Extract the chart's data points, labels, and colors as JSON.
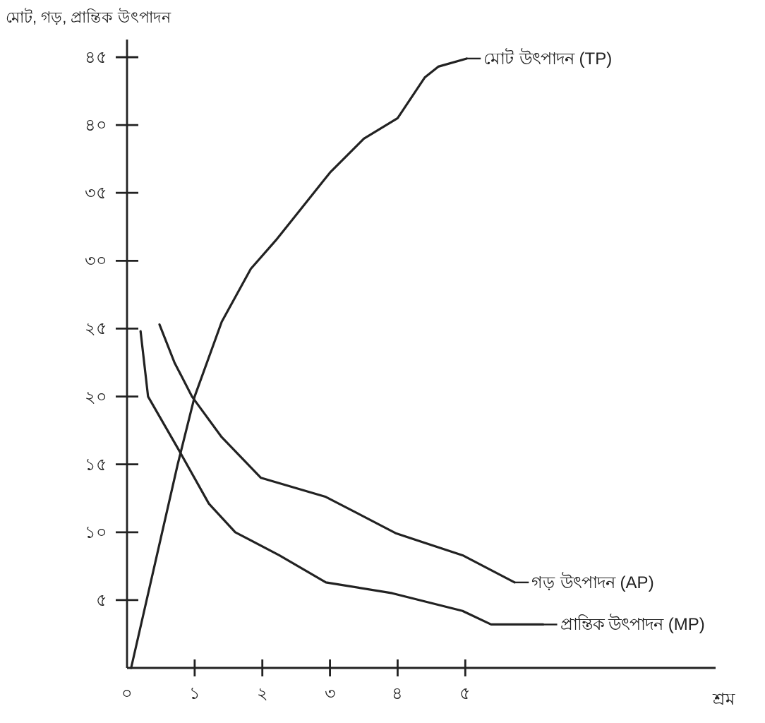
{
  "chart_data": {
    "type": "line",
    "xlabel": "শ্রম",
    "ylabel": "মোট, গড়, প্রান্তিক উৎপাদন",
    "xlim": [
      0,
      8.7
    ],
    "ylim": [
      0,
      46.3
    ],
    "xticks": [
      {
        "value": 0,
        "label": "০"
      },
      {
        "value": 1,
        "label": "১"
      },
      {
        "value": 2,
        "label": "২"
      },
      {
        "value": 3,
        "label": "৩"
      },
      {
        "value": 4,
        "label": "৪"
      },
      {
        "value": 5,
        "label": "৫"
      }
    ],
    "yticks": [
      {
        "value": 5,
        "label": "৫"
      },
      {
        "value": 10,
        "label": "১০"
      },
      {
        "value": 15,
        "label": "১৫"
      },
      {
        "value": 20,
        "label": "২০"
      },
      {
        "value": 25,
        "label": "২৫"
      },
      {
        "value": 30,
        "label": "৩০"
      },
      {
        "value": 35,
        "label": "৩৫"
      },
      {
        "value": 40,
        "label": "৪০"
      },
      {
        "value": 45,
        "label": "৪৫"
      }
    ],
    "grid": false,
    "legend": "right",
    "marker": "none",
    "line_style": "solid",
    "series": [
      {
        "name": "মোট উৎপাদন (TP)",
        "color": "#222222",
        "x": [
          0.06,
          0.75,
          1,
          1.4,
          1.83,
          2.2,
          2.6,
          3,
          3.5,
          4,
          4.2,
          4.4,
          4.6,
          5.02
        ],
        "values": [
          0,
          15,
          20,
          25.5,
          29.4,
          31.5,
          34,
          36.5,
          39,
          40.5,
          42,
          43.5,
          44.3,
          44.9
        ]
      },
      {
        "name": "গড় উৎপাদন (AP)",
        "color": "#222222",
        "x": [
          0.48,
          0.7,
          0.96,
          1.4,
          1.98,
          2.94,
          3.98,
          4.96,
          5.73
        ],
        "values": [
          25.3,
          22.5,
          20,
          17,
          14,
          12.6,
          9.9,
          8.3,
          6.3
        ]
      },
      {
        "name": "প্রান্তিক উৎপাদন (MP)",
        "color": "#222222",
        "x": [
          0.2,
          0.31,
          0.75,
          1.21,
          1.6,
          2.25,
          2.94,
          3.92,
          4.96,
          5.38,
          6.15
        ],
        "values": [
          24.8,
          20,
          16.2,
          12.1,
          10,
          8.3,
          6.3,
          5.5,
          4.2,
          3.2,
          3.2
        ]
      }
    ]
  }
}
